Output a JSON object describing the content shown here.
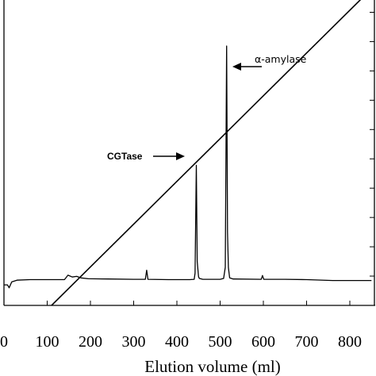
{
  "chart_data": {
    "type": "line",
    "xlabel": "Elution volume (ml)",
    "xlim": [
      0,
      850
    ],
    "ylim": [
      0,
      100
    ],
    "x_ticks": [
      0,
      100,
      200,
      300,
      400,
      500,
      600,
      700,
      800
    ],
    "x_tick_labels": [
      "0",
      "100",
      "200",
      "300",
      "400",
      "500",
      "600",
      "700",
      "800"
    ],
    "y_ticks": [
      0,
      10,
      20,
      30,
      40,
      50,
      60,
      70,
      80,
      90,
      100
    ],
    "series": [
      {
        "role": "absorbance_trace",
        "points": [
          [
            0,
            7
          ],
          [
            8,
            7
          ],
          [
            12,
            6
          ],
          [
            18,
            8
          ],
          [
            30,
            8.6
          ],
          [
            60,
            8.8
          ],
          [
            140,
            8.8
          ],
          [
            148,
            10.3
          ],
          [
            158,
            9.7
          ],
          [
            168,
            9.9
          ],
          [
            178,
            9.4
          ],
          [
            195,
            9.1
          ],
          [
            240,
            9.0
          ],
          [
            300,
            8.9
          ],
          [
            327,
            8.9
          ],
          [
            330,
            12
          ],
          [
            333,
            8.9
          ],
          [
            380,
            8.8
          ],
          [
            430,
            8.8
          ],
          [
            440,
            8.9
          ],
          [
            442,
            11
          ],
          [
            445,
            47.8
          ],
          [
            447,
            15
          ],
          [
            450,
            9.8
          ],
          [
            452,
            9.2
          ],
          [
            460,
            8.9
          ],
          [
            500,
            8.9
          ],
          [
            508,
            9.2
          ],
          [
            512,
            13
          ],
          [
            515,
            88.5
          ],
          [
            517,
            25
          ],
          [
            519,
            13
          ],
          [
            522,
            9.4
          ],
          [
            530,
            9.0
          ],
          [
            595,
            8.9
          ],
          [
            598,
            10.2
          ],
          [
            601,
            8.9
          ],
          [
            650,
            8.9
          ],
          [
            700,
            8.8
          ],
          [
            760,
            8.5
          ],
          [
            850,
            8.5
          ]
        ]
      },
      {
        "role": "gradient",
        "points": [
          [
            110,
            0
          ],
          [
            850,
            108
          ]
        ]
      }
    ],
    "annotations": [
      {
        "text": "CGTase",
        "x": 445,
        "y": 54
      },
      {
        "text": "α-amylase",
        "x": 515,
        "y": 86
      }
    ]
  }
}
